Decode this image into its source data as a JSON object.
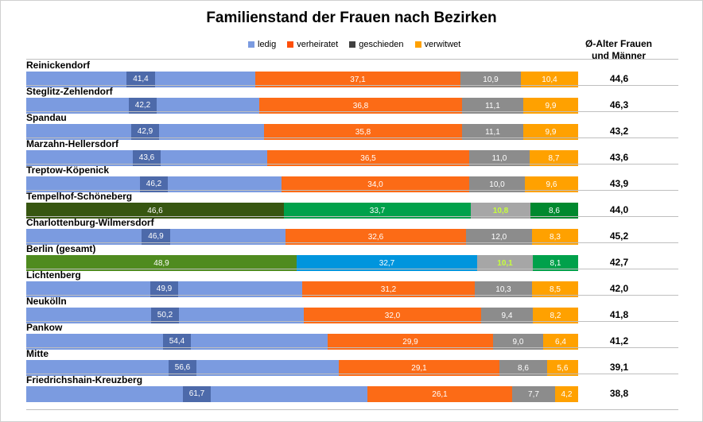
{
  "chart_data": {
    "type": "bar",
    "stacked": true,
    "orientation": "horizontal",
    "title": "Familienstand der Frauen nach Bezirken",
    "avg_header": "Ø-Alter Frauen und Männer",
    "legend_position": "top",
    "categories": [
      "Reinickendorf",
      "Steglitz-Zehlendorf",
      "Spandau",
      "Marzahn-Hellersdorf",
      "Treptow-Köpenick",
      "Tempelhof-Schöneberg",
      "Charlottenburg-Wilmersdorf",
      "Berlin (gesamt)",
      "Lichtenberg",
      "Neukölln",
      "Pankow",
      "Mitte",
      "Friedrichshain-Kreuzberg"
    ],
    "series": [
      {
        "name": "ledig",
        "color": "#7b9be0",
        "label_bg": "#4d6aaa",
        "values": [
          41.4,
          42.2,
          42.9,
          43.6,
          46.2,
          46.6,
          46.9,
          48.9,
          49.9,
          50.2,
          54.4,
          56.6,
          61.7
        ]
      },
      {
        "name": "verheiratet",
        "color": "#fc6b16",
        "values": [
          37.1,
          36.8,
          35.8,
          36.5,
          34.0,
          33.7,
          32.6,
          32.7,
          31.2,
          32.0,
          29.9,
          29.1,
          26.1
        ]
      },
      {
        "name": "geschieden",
        "color": "#8c8c8c",
        "values": [
          10.9,
          11.1,
          11.1,
          11.0,
          10.0,
          10.8,
          12.0,
          10.1,
          10.3,
          9.4,
          9.0,
          8.6,
          7.7
        ]
      },
      {
        "name": "verwitwet",
        "color": "#ffa100",
        "values": [
          10.4,
          9.9,
          9.9,
          8.7,
          9.6,
          8.6,
          8.3,
          8.1,
          8.5,
          8.2,
          6.4,
          5.6,
          4.2
        ]
      }
    ],
    "legend_colors": {
      "ledig": "#7b9be0",
      "verheiratet": "#ff4f0a",
      "geschieden": "#404040",
      "verwitwet": "#ffa100"
    },
    "value_labels": [
      [
        "41,4",
        "37,1",
        "10,9",
        "10,4"
      ],
      [
        "42,2",
        "36,8",
        "11,1",
        "9,9"
      ],
      [
        "42,9",
        "35,8",
        "11,1",
        "9,9"
      ],
      [
        "43,6",
        "36,5",
        "11,0",
        "8,7"
      ],
      [
        "46,2",
        "34,0",
        "10,0",
        "9,6"
      ],
      [
        "46,6",
        "33,7",
        "10,8",
        "8,6"
      ],
      [
        "46,9",
        "32,6",
        "12,0",
        "8,3"
      ],
      [
        "48,9",
        "32,7",
        "10,1",
        "8,1"
      ],
      [
        "49,9",
        "31,2",
        "10,3",
        "8,5"
      ],
      [
        "50,2",
        "32,0",
        "9,4",
        "8,2"
      ],
      [
        "54,4",
        "29,9",
        "9,0",
        "6,4"
      ],
      [
        "56,6",
        "29,1",
        "8,6",
        "5,6"
      ],
      [
        "61,7",
        "26,1",
        "7,7",
        "4,2"
      ]
    ],
    "avg_age": [
      "44,6",
      "46,3",
      "43,2",
      "43,6",
      "43,9",
      "44,0",
      "45,2",
      "42,7",
      "42,0",
      "41,8",
      "41,2",
      "39,1",
      "38,8"
    ],
    "highlight_rows": {
      "Tempelhof-Schöneberg": {
        "colors": [
          "#375611",
          "#00a14b",
          "#a6a6a6",
          "#00892f"
        ],
        "label_color_3": "#c6ff3b"
      },
      "Berlin (gesamt)": {
        "colors": [
          "#4f8b1f",
          "#0095dd",
          "#a6a6a6",
          "#00a14b"
        ],
        "label_color_3": "#c6ff3b"
      }
    },
    "xlim": [
      0,
      100
    ],
    "grid": false
  }
}
